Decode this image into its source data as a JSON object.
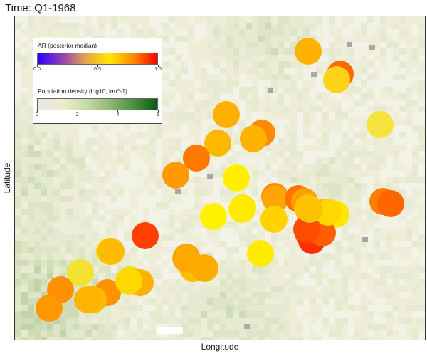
{
  "title": "Time: Q1-1968",
  "axes": {
    "xlabel": "Longitude",
    "ylabel": "Latitude"
  },
  "legend_ar": {
    "title": "AR (posterior median)",
    "ticks": [
      "0.0",
      "0.5",
      "1.0"
    ],
    "colors": [
      "#2b00ff",
      "#8e3fb6",
      "#e7a24b",
      "#ffe800",
      "#ff8800",
      "#ff0000"
    ]
  },
  "legend_pop": {
    "title": "Population density (log10, km^-1)",
    "ticks": [
      "0",
      "2",
      "4",
      "6"
    ],
    "colors": [
      "#e9e7de",
      "#eeedcf",
      "#c9dba7",
      "#8fb878",
      "#4d8f45",
      "#0d5a10"
    ]
  },
  "chart_data": {
    "type": "scatter",
    "encoding": "bubble map; circle color = AR (posterior median), background shading = population density",
    "points": [
      {
        "ar": 0.72,
        "color": "#ffb300"
      },
      {
        "ar": 0.85,
        "color": "#ff6a00"
      },
      {
        "ar": 0.6,
        "color": "#ffd21a"
      },
      {
        "ar": 0.52,
        "color": "#f5e23a"
      },
      {
        "ar": 0.74,
        "color": "#ffb000"
      },
      {
        "ar": 0.8,
        "color": "#ff8a00"
      },
      {
        "ar": 0.75,
        "color": "#ffb200"
      },
      {
        "ar": 0.73,
        "color": "#ffb800"
      },
      {
        "ar": 0.83,
        "color": "#ff7800"
      },
      {
        "ar": 0.78,
        "color": "#ff9a00"
      },
      {
        "ar": 0.55,
        "color": "#ffee00"
      },
      {
        "ar": 0.57,
        "color": "#ffe400"
      },
      {
        "ar": 0.57,
        "color": "#ffea00"
      },
      {
        "ar": 0.55,
        "color": "#fff200"
      },
      {
        "ar": 0.81,
        "color": "#ff8800"
      },
      {
        "ar": 0.75,
        "color": "#ffa400"
      },
      {
        "ar": 0.84,
        "color": "#ff7500"
      },
      {
        "ar": 0.77,
        "color": "#ffa000"
      },
      {
        "ar": 0.7,
        "color": "#ffc000"
      },
      {
        "ar": 0.6,
        "color": "#ffe600"
      },
      {
        "ar": 0.82,
        "color": "#ff7e00"
      },
      {
        "ar": 0.86,
        "color": "#ff6600"
      },
      {
        "ar": 0.68,
        "color": "#ffc500"
      },
      {
        "ar": 0.9,
        "color": "#ff4a00"
      },
      {
        "ar": 0.94,
        "color": "#ff3000"
      },
      {
        "ar": 0.8,
        "color": "#ff9000"
      },
      {
        "ar": 0.87,
        "color": "#ff5e00"
      },
      {
        "ar": 0.9,
        "color": "#ff4c00"
      },
      {
        "ar": 0.65,
        "color": "#ffd200"
      },
      {
        "ar": 0.62,
        "color": "#ffd800"
      },
      {
        "ar": 0.7,
        "color": "#ffc200"
      },
      {
        "ar": 0.92,
        "color": "#ff4000"
      },
      {
        "ar": 0.62,
        "color": "#ffde00"
      },
      {
        "ar": 0.71,
        "color": "#ffbb00"
      },
      {
        "ar": 0.77,
        "color": "#ffa200"
      },
      {
        "ar": 0.6,
        "color": "#ffe000"
      },
      {
        "ar": 0.72,
        "color": "#ffbc00"
      },
      {
        "ar": 0.55,
        "color": "#f4e230"
      },
      {
        "ar": 0.8,
        "color": "#ff9200"
      },
      {
        "ar": 0.63,
        "color": "#ffdb00"
      },
      {
        "ar": 0.74,
        "color": "#ffb000"
      },
      {
        "ar": 0.8,
        "color": "#ff9000"
      },
      {
        "ar": 0.72,
        "color": "#ffba00"
      },
      {
        "ar": 0.73,
        "color": "#ffb400"
      },
      {
        "ar": 0.78,
        "color": "#ff9800"
      },
      {
        "ar": 0.57,
        "color": "#ffea00"
      },
      {
        "ar": 0.7,
        "color": "#ffc400"
      },
      {
        "ar": 0.75,
        "color": "#ffa800"
      },
      {
        "ar": 0.75,
        "color": "#ffaa00"
      },
      {
        "ar": 0.63,
        "color": "#ffd800"
      }
    ]
  }
}
